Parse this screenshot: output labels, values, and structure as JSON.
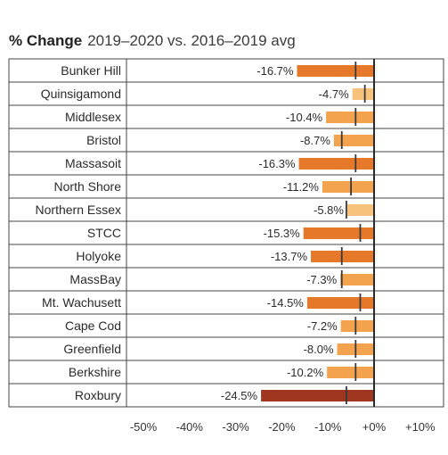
{
  "header": {
    "title_bold": "% Change",
    "title_rest": "2019–2020 vs. 2016–2019 avg"
  },
  "colors": {
    "dark": "#a0361f",
    "mid": "#e6782a",
    "light": "#f3a24d",
    "lighter": "#f7c27c",
    "marker": "#3a3a3a",
    "zero_line": "#2a2a2a",
    "row_border": "#444444"
  },
  "chart_data": {
    "type": "bar",
    "orientation": "horizontal",
    "xlim": [
      -50,
      10
    ],
    "xticks": [
      -50,
      -40,
      -30,
      -20,
      -10,
      0,
      10
    ],
    "xtick_labels": [
      "-50%",
      "-40%",
      "-30%",
      "-20%",
      "-10%",
      "+0%",
      "+10%"
    ],
    "grid": false,
    "categories": [
      "Bunker Hill",
      "Quinsigamond",
      "Middlesex",
      "Bristol",
      "Massasoit",
      "North Shore",
      "Northern Essex",
      "STCC",
      "Holyoke",
      "MassBay",
      "Mt. Wachusett",
      "Cape Cod",
      "Greenfield",
      "Berkshire",
      "Roxbury"
    ],
    "values": [
      -16.7,
      -4.7,
      -10.4,
      -8.7,
      -16.3,
      -11.2,
      -5.8,
      -15.3,
      -13.7,
      -7.3,
      -14.5,
      -7.2,
      -8.0,
      -10.2,
      -24.5
    ],
    "value_labels": [
      "-16.7%",
      "-4.7%",
      "-10.4%",
      "-8.7%",
      "-16.3%",
      "-11.2%",
      "-5.8%",
      "-15.3%",
      "-13.7%",
      "-7.3%",
      "-14.5%",
      "-7.2%",
      "-8.0%",
      "-10.2%",
      "-24.5%"
    ],
    "reference_markers": [
      -4,
      -2,
      -4,
      -7,
      -4,
      -5,
      -6,
      -3,
      -7,
      -7,
      -3,
      -4,
      -4,
      -4,
      -6
    ]
  }
}
